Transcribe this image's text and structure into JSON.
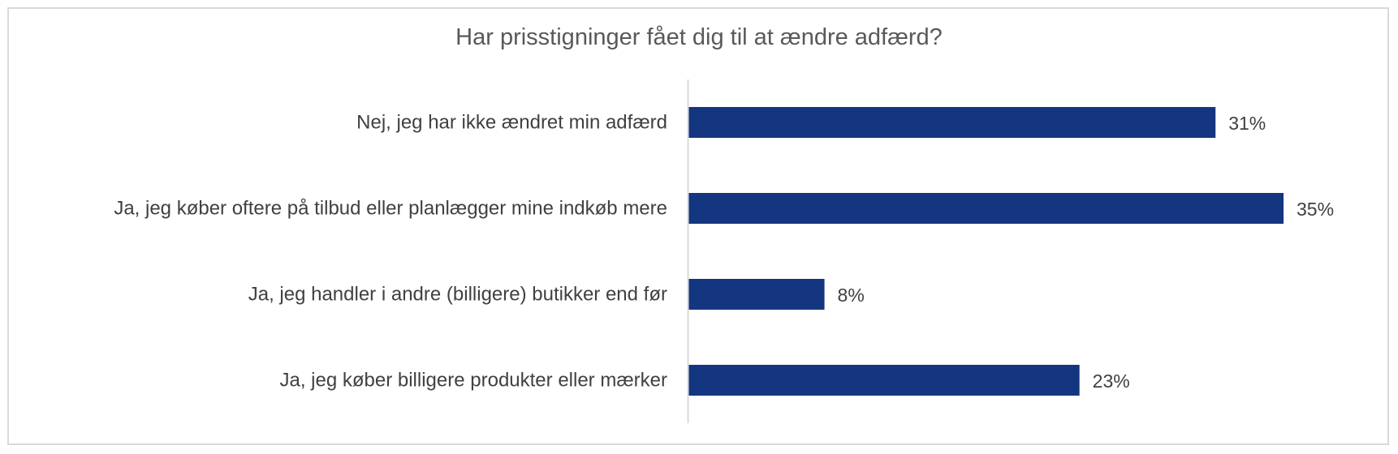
{
  "chart_data": {
    "type": "bar",
    "orientation": "horizontal",
    "title": "Har prisstigninger fået dig til at ændre adfærd?",
    "categories": [
      "Nej, jeg har ikke ændret min adfærd",
      "Ja, jeg køber oftere på tilbud eller planlægger mine indkøb mere",
      "Ja, jeg handler i andre (billigere) butikker end før",
      "Ja, jeg køber billigere produkter eller mærker"
    ],
    "values": [
      31,
      35,
      8,
      23
    ],
    "value_labels": [
      "31%",
      "35%",
      "8%",
      "23%"
    ],
    "unit": "%",
    "xlim": [
      0,
      35
    ],
    "bar_color": "#14357f",
    "axis_color": "#d9d9d9",
    "grid": false,
    "legend": "none"
  }
}
